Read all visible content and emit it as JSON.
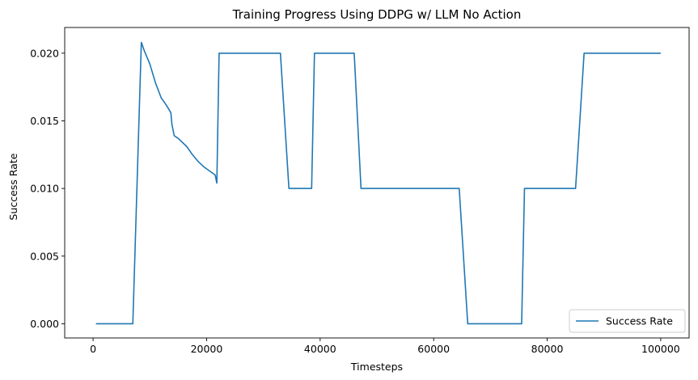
{
  "chart_data": {
    "type": "line",
    "title": "Training Progress Using DDPG w/ LLM No Action",
    "xlabel": "Timesteps",
    "ylabel": "Success Rate",
    "xlim": [
      -5000,
      105000
    ],
    "ylim": [
      -0.00105,
      0.0219
    ],
    "x_ticks": [
      0,
      20000,
      40000,
      60000,
      80000,
      100000
    ],
    "x_tick_labels": [
      "0",
      "20000",
      "40000",
      "60000",
      "80000",
      "100000"
    ],
    "y_ticks": [
      0.0,
      0.005,
      0.01,
      0.015,
      0.02
    ],
    "y_tick_labels": [
      "0.000",
      "0.005",
      "0.010",
      "0.015",
      "0.020"
    ],
    "grid": false,
    "legend_position": "bottom-right",
    "series": [
      {
        "name": "Success Rate",
        "color": "#1f77b4",
        "x": [
          500,
          7000,
          8500,
          9000,
          10000,
          11000,
          12000,
          13000,
          13700,
          13900,
          14300,
          15000,
          16500,
          17500,
          18500,
          19500,
          20500,
          21500,
          21600,
          21800,
          22200,
          33000,
          34500,
          38500,
          39000,
          46000,
          47200,
          64500,
          66000,
          75500,
          76000,
          85000,
          86500,
          100000
        ],
        "y": [
          0.0,
          0.0,
          0.0208,
          0.0202,
          0.0192,
          0.0178,
          0.0167,
          0.0161,
          0.0156,
          0.0147,
          0.0139,
          0.0137,
          0.0131,
          0.0125,
          0.012,
          0.0116,
          0.0113,
          0.011,
          0.0108,
          0.0104,
          0.02,
          0.02,
          0.01,
          0.01,
          0.02,
          0.02,
          0.01,
          0.01,
          0.0,
          0.0,
          0.01,
          0.01,
          0.02,
          0.02
        ]
      }
    ]
  }
}
